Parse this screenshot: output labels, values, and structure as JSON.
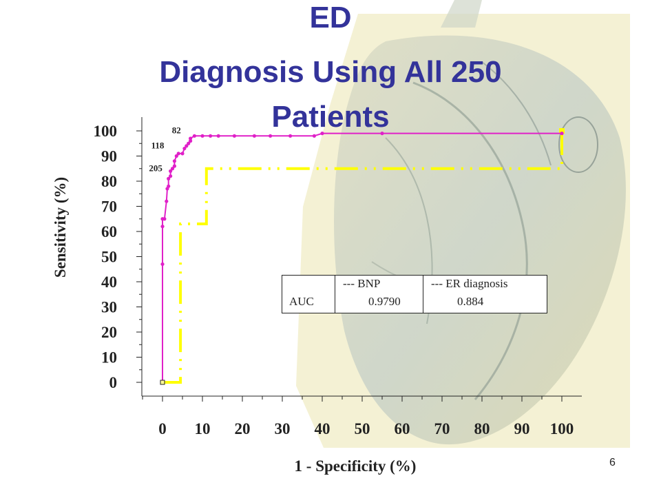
{
  "slide": {
    "title_line1": "ED",
    "title_line2": "Diagnosis Using All 250",
    "title_line3": "Patients",
    "page_number": "6"
  },
  "legend": {
    "auc_label": "AUC",
    "bnp_label": "---  BNP",
    "bnp_auc": "0.9790",
    "er_label": "---  ER diagnosis",
    "er_auc": "0.884"
  },
  "colors": {
    "title": "#33339a",
    "bnp_line": "#e020c8",
    "er_line": "#ffff00",
    "bnp_legend_dash": "#8fa8e8"
  },
  "chart_data": {
    "type": "line",
    "xlabel": "1 - Specificity (%)",
    "ylabel": "Sensitivity (%)",
    "xlim": [
      0,
      100
    ],
    "ylim": [
      0,
      100
    ],
    "x_ticks": [
      0,
      10,
      20,
      30,
      40,
      50,
      60,
      70,
      80,
      90,
      100
    ],
    "y_ticks": [
      0,
      10,
      20,
      30,
      40,
      50,
      60,
      70,
      80,
      90,
      100
    ],
    "series": [
      {
        "name": "BNP",
        "style": "solid-markers",
        "x": [
          0,
          0,
          0,
          0,
          0.5,
          1,
          1.2,
          1.5,
          1.5,
          2,
          2,
          2.5,
          3,
          3,
          3.5,
          4,
          5,
          5.5,
          6,
          6.5,
          7,
          7,
          8,
          10,
          12,
          14,
          18,
          23,
          27,
          32,
          38,
          40,
          55,
          100
        ],
        "y": [
          0,
          47,
          62,
          65,
          65,
          72,
          77,
          78,
          81,
          82,
          84,
          85,
          86,
          88,
          90,
          91,
          91,
          93,
          94,
          95,
          96,
          97,
          98,
          98,
          98,
          98,
          98,
          98,
          98,
          98,
          98,
          99,
          99,
          99
        ]
      },
      {
        "name": "ER diagnosis",
        "style": "dash-dot",
        "x": [
          0,
          4.5,
          4.5,
          11,
          11,
          100,
          100
        ],
        "y": [
          0,
          0,
          63,
          63,
          85,
          85,
          100
        ]
      }
    ],
    "annotations": [
      {
        "text": "82",
        "x": 3.5,
        "y": 99
      },
      {
        "text": "118",
        "x": -1.2,
        "y": 93
      },
      {
        "text": "205",
        "x": -1.7,
        "y": 84
      }
    ]
  }
}
